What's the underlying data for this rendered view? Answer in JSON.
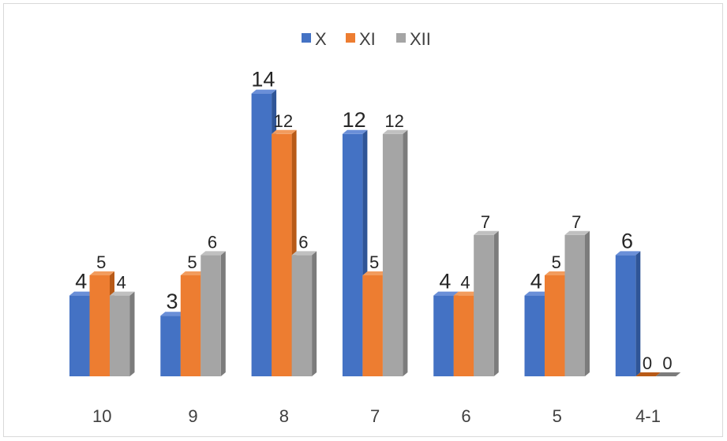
{
  "chart_data": {
    "type": "bar",
    "title": "",
    "xlabel": "",
    "ylabel": "",
    "ylim": [
      0,
      14
    ],
    "grid": false,
    "legend_position": "top-center",
    "categories": [
      "10",
      "9",
      "8",
      "7",
      "6",
      "5",
      "4-1"
    ],
    "series": [
      {
        "name": "X",
        "values": [
          4,
          3,
          14,
          12,
          4,
          4,
          6
        ],
        "color": "#4472C4",
        "side_color": "#2F5597",
        "top_color": "#6A8FD8"
      },
      {
        "name": "XI",
        "values": [
          5,
          5,
          12,
          5,
          4,
          5,
          0
        ],
        "color": "#ED7D31",
        "side_color": "#B85A17",
        "top_color": "#F29C5E"
      },
      {
        "name": "XII",
        "values": [
          4,
          6,
          6,
          12,
          7,
          7,
          0
        ],
        "color": "#A5A5A5",
        "side_color": "#7C7C7C",
        "top_color": "#C0C0C0"
      }
    ]
  }
}
